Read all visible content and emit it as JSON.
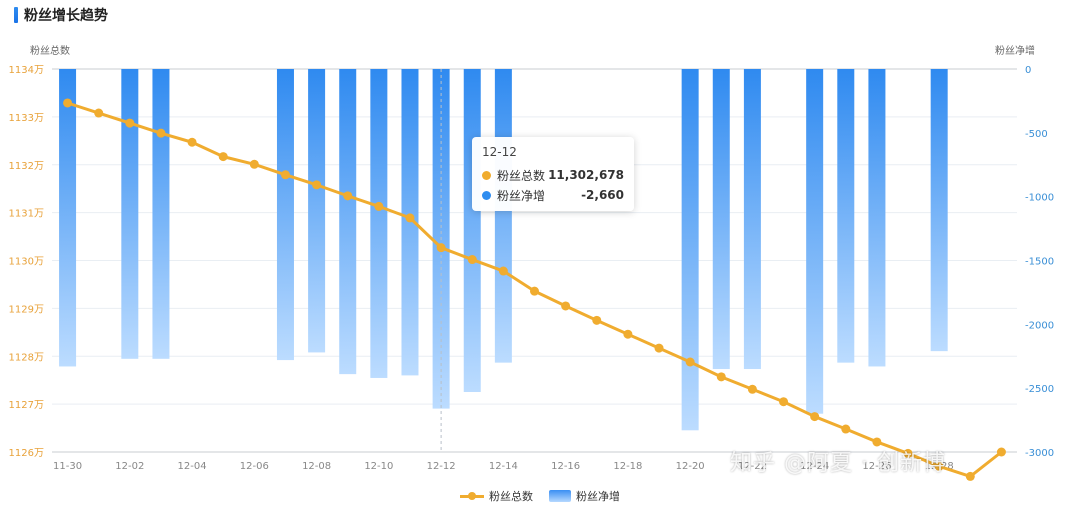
{
  "header": {
    "title": "粉丝增长趋势"
  },
  "chart_data": {
    "type": "bar+line",
    "title": "粉丝增长趋势",
    "left_axis_label": "粉丝总数",
    "right_axis_label": "粉丝净增",
    "x": [
      "11-30",
      "12-01",
      "12-02",
      "12-03",
      "12-04",
      "12-05",
      "12-06",
      "12-07",
      "12-08",
      "12-09",
      "12-10",
      "12-11",
      "12-12",
      "12-13",
      "12-14",
      "12-15",
      "12-16",
      "12-17",
      "12-18",
      "12-19",
      "12-20",
      "12-21",
      "12-22",
      "12-23",
      "12-24",
      "12-25",
      "12-26",
      "12-27",
      "12-28",
      "12-29",
      "12-30"
    ],
    "x_tick_labels": [
      "11-30",
      "12-02",
      "12-04",
      "12-06",
      "12-08",
      "12-10",
      "12-12",
      "12-14",
      "12-16",
      "12-18",
      "12-20",
      "12-22",
      "12-24",
      "12-26",
      "12-28"
    ],
    "left_ylim": [
      11260000,
      11340000
    ],
    "left_ticks": [
      "1126万",
      "1127万",
      "1128万",
      "1129万",
      "1130万",
      "1131万",
      "1132万",
      "1133万",
      "1134万"
    ],
    "right_ylim": [
      -3000,
      0
    ],
    "right_ticks": [
      "0",
      "-500",
      "-1000",
      "-1500",
      "-2000",
      "-2500",
      "-3000"
    ],
    "series": [
      {
        "name": "粉丝总数",
        "type": "line",
        "axis": "left",
        "color": "#f0ac2f",
        "values": [
          11332900,
          11330800,
          11328700,
          11326600,
          11324700,
          11321700,
          11320100,
          11317900,
          11315800,
          11313500,
          11311300,
          11308900,
          11302678,
          11300200,
          11297800,
          11293600,
          11290500,
          11287500,
          11284600,
          11281700,
          11278800,
          11275700,
          11273100,
          11270500,
          11267400,
          11264800,
          11262100,
          11259700,
          11257000,
          11254900,
          11260000
        ]
      },
      {
        "name": "粉丝净增",
        "type": "bar",
        "axis": "right",
        "color": "#3a8ff2",
        "values": [
          -2330,
          null,
          -2270,
          -2270,
          null,
          null,
          null,
          -2280,
          -2220,
          -2390,
          -2420,
          -2400,
          -2660,
          -2530,
          -2300,
          null,
          null,
          null,
          null,
          null,
          -2830,
          -2350,
          -2350,
          null,
          -2700,
          -2300,
          -2330,
          null,
          -2210,
          null,
          null
        ]
      }
    ],
    "legend": [
      "粉丝总数",
      "粉丝净增"
    ],
    "legend_position": "bottom-center",
    "grid": true
  },
  "tooltip": {
    "date": "12-12",
    "rows": [
      {
        "name": "粉丝总数",
        "value": "11,302,678",
        "color": "#f0ac2f"
      },
      {
        "name": "粉丝净增",
        "value": "-2,660",
        "color": "#2f8df0"
      }
    ]
  },
  "watermark": {
    "text": "知乎 @阿夏 · 创新博"
  }
}
